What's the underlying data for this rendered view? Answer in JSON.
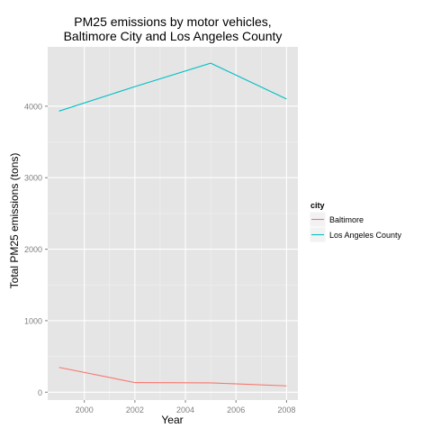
{
  "chart_data": {
    "type": "line",
    "title": [
      "PM25 emissions by motor vehicles,",
      "Baltimore City and Los Angeles County"
    ],
    "xlabel": "Year",
    "ylabel": "Total PM25 emissions (tons)",
    "x": [
      1999,
      2002,
      2005,
      2008
    ],
    "xlim": [
      1998.55,
      2008.45
    ],
    "ylim": [
      -110,
      4830
    ],
    "xticks": [
      2000,
      2002,
      2004,
      2006,
      2008
    ],
    "yticks": [
      0,
      1000,
      2000,
      3000,
      4000
    ],
    "grid": true,
    "legend": {
      "title": "city",
      "placement": "right"
    },
    "series": [
      {
        "name": "Baltimore",
        "color": "#F8766D",
        "values": [
          346.8,
          134.3,
          130.4,
          88.3
        ]
      },
      {
        "name": "Los Angeles County",
        "color": "#00BFC4",
        "values": [
          3931.1,
          4274.0,
          4601.4,
          4101.3
        ]
      }
    ]
  },
  "colors": {
    "panel_bg": "#E5E5E5",
    "grid_major": "#FFFFFF",
    "grid_minor": "#F2F2F2",
    "axis_text": "#7F7F7F",
    "legend_key_bg": "#F2F2F2"
  }
}
